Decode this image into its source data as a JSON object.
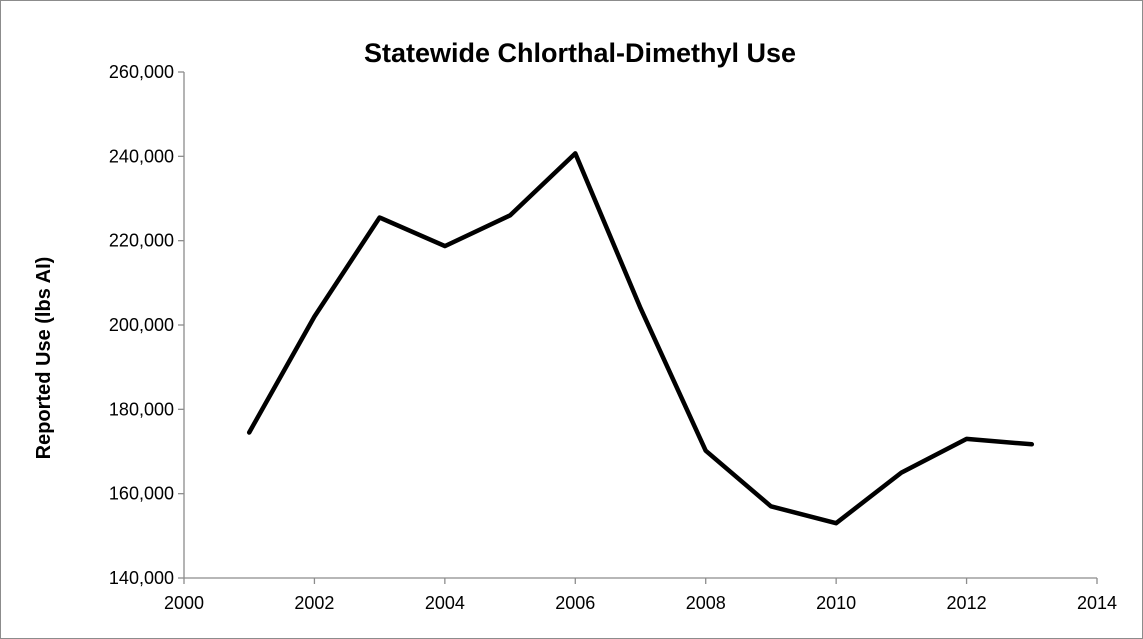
{
  "chart_data": {
    "type": "line",
    "title": "Statewide Chlorthal-Dimethyl Use",
    "xlabel": "",
    "ylabel": "Reported Use (lbs AI)",
    "xlim": [
      2000,
      2014
    ],
    "ylim": [
      140000,
      260000
    ],
    "x_ticks": [
      2000,
      2002,
      2004,
      2006,
      2008,
      2010,
      2012,
      2014
    ],
    "x_tick_labels": [
      "2000",
      "2002",
      "2004",
      "2006",
      "2008",
      "2010",
      "2012",
      "2014"
    ],
    "y_ticks": [
      140000,
      160000,
      180000,
      200000,
      220000,
      240000,
      260000
    ],
    "y_tick_labels": [
      "140,000",
      "160,000",
      "180,000",
      "200,000",
      "220,000",
      "240,000",
      "260,000"
    ],
    "grid": false,
    "legend": "none",
    "line_color": "#000000",
    "series": [
      {
        "x": [
          2001,
          2002,
          2003,
          2004,
          2005,
          2006,
          2007,
          2008,
          2009,
          2010,
          2011,
          2012,
          2013
        ],
        "values": [
          174500,
          202000,
          225500,
          218700,
          226000,
          240700,
          204000,
          170200,
          157000,
          153000,
          165000,
          173000,
          171700
        ]
      }
    ]
  }
}
